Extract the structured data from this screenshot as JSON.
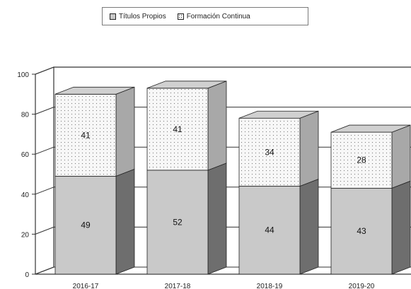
{
  "chart_data": {
    "type": "bar",
    "stacked": true,
    "three_d": true,
    "categories": [
      "2016-17",
      "2017-18",
      "2018-19",
      "2019-20"
    ],
    "series": [
      {
        "name": "Títulos Propios",
        "values": [
          49,
          52,
          44,
          43
        ],
        "color": "#c9c9c9"
      },
      {
        "name": "Formación Continua",
        "values": [
          41,
          41,
          34,
          28
        ],
        "color": "#f4f4f4"
      }
    ],
    "ylim": [
      0,
      100
    ],
    "yticks": [
      0,
      20,
      40,
      60,
      80,
      100
    ],
    "grid": true,
    "legend": "top",
    "data_labels": true
  }
}
